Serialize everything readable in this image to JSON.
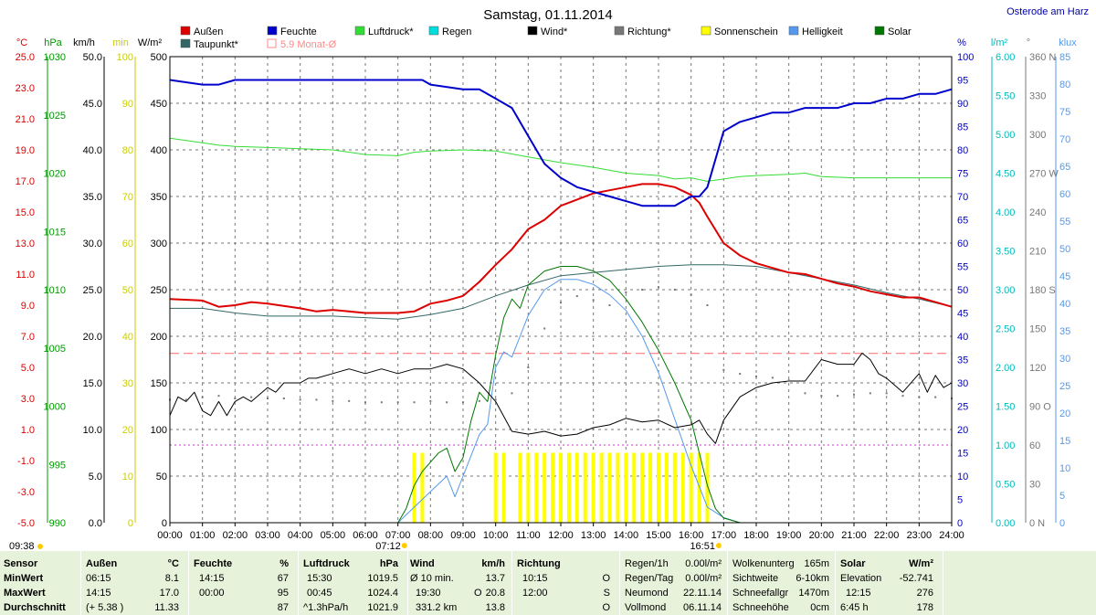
{
  "header": {
    "title": "Samstag, 01.11.2014",
    "station": "Osterode am Harz"
  },
  "legend": [
    {
      "label": "Außen",
      "color": "#dd0000"
    },
    {
      "label": "Feuchte",
      "color": "#0000cc"
    },
    {
      "label": "Luftdruck*",
      "color": "#33dd33"
    },
    {
      "label": "Regen",
      "color": "#00dddd"
    },
    {
      "label": "Wind*",
      "color": "#000000"
    },
    {
      "label": "Richtung*",
      "color": "#777777"
    },
    {
      "label": "Sonnenschein",
      "color": "#ffff00"
    },
    {
      "label": "Helligkeit",
      "color": "#5599ee"
    },
    {
      "label": "Solar",
      "color": "#007700"
    },
    {
      "label": "Taupunkt*",
      "color": "#336666"
    },
    {
      "label": "5.9 Monat-Ø",
      "color": "#ff8888"
    }
  ],
  "axes": {
    "temp": {
      "unit": "°C",
      "ticks": [
        "25.0",
        "23.0",
        "21.0",
        "19.0",
        "17.0",
        "15.0",
        "13.0",
        "11.0",
        "9.0",
        "7.0",
        "5.0",
        "3.0",
        "1.0",
        "-1.0",
        "-3.0",
        "-5.0"
      ],
      "color": "#dd0000"
    },
    "pressure": {
      "unit": "hPa",
      "ticks": [
        "1030",
        "1025",
        "1020",
        "1015",
        "1010",
        "1005",
        "1000",
        "995",
        "990"
      ],
      "color": "#009900"
    },
    "wind": {
      "unit": "km/h",
      "ticks": [
        "50.0",
        "45.0",
        "40.0",
        "35.0",
        "30.0",
        "25.0",
        "20.0",
        "15.0",
        "10.0",
        "5.0",
        "0.0"
      ],
      "color": "#000000"
    },
    "sunshine": {
      "unit": "min",
      "ticks": [
        "100",
        "90",
        "80",
        "70",
        "60",
        "50",
        "40",
        "30",
        "20",
        "10",
        "0"
      ],
      "color": "#cccc00"
    },
    "solar": {
      "unit": "W/m²",
      "ticks": [
        "500",
        "450",
        "400",
        "350",
        "300",
        "250",
        "200",
        "150",
        "100",
        "50",
        "0"
      ],
      "color": "#000000"
    },
    "humidity": {
      "unit": "%",
      "ticks": [
        "100",
        "95",
        "90",
        "85",
        "80",
        "75",
        "70",
        "65",
        "60",
        "55",
        "50",
        "45",
        "40",
        "35",
        "30",
        "25",
        "20",
        "15",
        "10",
        "5",
        "0"
      ],
      "color": "#0000cc"
    },
    "rain": {
      "unit": "l/m²",
      "ticks": [
        "6.00",
        "5.50",
        "5.00",
        "4.50",
        "4.00",
        "3.50",
        "3.00",
        "2.50",
        "2.00",
        "1.50",
        "1.00",
        "0.50",
        "0.00"
      ],
      "color": "#00bbbb"
    },
    "direction": {
      "unit": "°",
      "ticks": [
        "360 N",
        "330",
        "300",
        "270 W",
        "240",
        "210",
        "180 S",
        "150",
        "120",
        "90 O",
        "60",
        "30",
        "0 N"
      ],
      "color": "#777777"
    },
    "brightness": {
      "unit": "klux",
      "ticks": [
        "85",
        "80",
        "75",
        "70",
        "65",
        "60",
        "55",
        "50",
        "45",
        "40",
        "35",
        "30",
        "25",
        "20",
        "15",
        "10",
        "5",
        "0"
      ],
      "color": "#5599ee"
    },
    "time_ticks": [
      "00:00",
      "01:00",
      "02:00",
      "03:00",
      "04:00",
      "05:00",
      "06:00",
      "07:00",
      "08:00",
      "09:00",
      "10:00",
      "11:00",
      "12:00",
      "13:00",
      "14:00",
      "15:00",
      "16:00",
      "17:00",
      "18:00",
      "19:00",
      "20:00",
      "21:00",
      "22:00",
      "23:00",
      "24:00"
    ]
  },
  "markers": {
    "left_time": "09:38",
    "sunrise": "07:12",
    "sunset": "16:51"
  },
  "chart_data": {
    "type": "line",
    "x_unit": "hour of day",
    "xlim": [
      0,
      24
    ],
    "monthly_average_temp": 5.9,
    "rain_reference_line_l_m2": 1.0,
    "series": [
      {
        "name": "Außen",
        "axis": "temp",
        "color": "#dd0000",
        "x": [
          0,
          1,
          1.5,
          2,
          2.5,
          3,
          4,
          4.5,
          5,
          6,
          7,
          7.5,
          8,
          8.5,
          9,
          9.5,
          10,
          10.5,
          11,
          11.5,
          12,
          12.5,
          13,
          13.5,
          14,
          14.5,
          15,
          15.5,
          16,
          16.25,
          16.5,
          17,
          17.5,
          18,
          18.5,
          19,
          19.5,
          20,
          20.5,
          21,
          21.5,
          22,
          22.5,
          23,
          23.5,
          24
        ],
        "y": [
          9.4,
          9.3,
          8.9,
          9.0,
          9.2,
          9.1,
          8.8,
          8.6,
          8.7,
          8.5,
          8.5,
          8.6,
          9.1,
          9.3,
          9.6,
          10.5,
          11.6,
          12.6,
          13.9,
          14.5,
          15.4,
          15.8,
          16.2,
          16.4,
          16.6,
          16.8,
          16.8,
          16.6,
          16.1,
          15.6,
          14.7,
          13.0,
          12.2,
          11.7,
          11.4,
          11.1,
          11.0,
          10.7,
          10.4,
          10.2,
          9.9,
          9.7,
          9.5,
          9.5,
          9.2,
          8.9
        ]
      },
      {
        "name": "Feuchte",
        "axis": "humidity",
        "color": "#0000cc",
        "x": [
          0,
          1,
          1.5,
          2,
          3,
          4,
          5,
          6,
          7,
          7.75,
          8,
          9,
          9.5,
          10,
          10.5,
          11,
          11.5,
          12,
          12.5,
          13,
          13.5,
          14,
          14.5,
          15,
          15.5,
          16,
          16.25,
          16.5,
          16.75,
          17,
          17.5,
          18,
          18.5,
          19,
          19.5,
          20,
          20.5,
          21,
          21.5,
          22,
          22.5,
          23,
          23.5,
          24
        ],
        "y": [
          95,
          94,
          94,
          95,
          95,
          95,
          95,
          95,
          95,
          95,
          94,
          93,
          93,
          91,
          89,
          83,
          77,
          74,
          72,
          71,
          70,
          69,
          68,
          68,
          68,
          70,
          70,
          72,
          78,
          84,
          86,
          87,
          88,
          88,
          89,
          89,
          89,
          90,
          90,
          91,
          91,
          92,
          92,
          93
        ]
      },
      {
        "name": "Luftdruck*",
        "axis": "pressure",
        "color": "#33dd33",
        "x": [
          0,
          0.5,
          1,
          1.5,
          2,
          3,
          4,
          5,
          6,
          7,
          7.5,
          8,
          9,
          10,
          11,
          12,
          13,
          14,
          15,
          15.5,
          16,
          16.5,
          17,
          17.5,
          18,
          19,
          19.5,
          20,
          21,
          22,
          23,
          24
        ],
        "y": [
          1023.0,
          1022.8,
          1022.6,
          1022.4,
          1022.3,
          1022.2,
          1022.1,
          1022.0,
          1021.6,
          1021.5,
          1021.8,
          1021.9,
          1022.0,
          1021.9,
          1021.4,
          1020.9,
          1020.5,
          1020.0,
          1019.8,
          1019.5,
          1019.6,
          1019.3,
          1019.5,
          1019.7,
          1019.8,
          1019.9,
          1020.0,
          1019.7,
          1019.6,
          1019.6,
          1019.6,
          1019.6
        ]
      },
      {
        "name": "Taupunkt*",
        "axis": "temp",
        "color": "#336666",
        "x": [
          0,
          1,
          2,
          3,
          4,
          5,
          6,
          7,
          8,
          9,
          10,
          11,
          12,
          13,
          14,
          15,
          16,
          17,
          18,
          19,
          20,
          21,
          22,
          23,
          24
        ],
        "y": [
          8.8,
          8.8,
          8.5,
          8.3,
          8.3,
          8.3,
          8.2,
          8.1,
          8.4,
          8.8,
          9.6,
          10.3,
          10.9,
          11.1,
          11.3,
          11.5,
          11.6,
          11.6,
          11.5,
          11.1,
          10.7,
          10.3,
          9.8,
          9.4,
          8.9
        ]
      },
      {
        "name": "Solar",
        "axis": "solar",
        "color": "#007700",
        "x": [
          7,
          7.25,
          7.5,
          7.75,
          8,
          8.25,
          8.5,
          8.75,
          9,
          9.25,
          9.5,
          9.75,
          10,
          10.25,
          10.5,
          10.75,
          11,
          11.5,
          12,
          12.5,
          13,
          13.5,
          14,
          14.5,
          15,
          15.5,
          16,
          16.25,
          16.5,
          16.75,
          17,
          17.5
        ],
        "y": [
          0,
          15,
          40,
          55,
          65,
          75,
          80,
          55,
          70,
          110,
          140,
          130,
          180,
          220,
          240,
          230,
          255,
          270,
          275,
          275,
          270,
          260,
          240,
          215,
          185,
          150,
          110,
          75,
          40,
          15,
          5,
          0
        ]
      },
      {
        "name": "Helligkeit",
        "axis": "brightness",
        "color": "#5599ee",
        "x": [
          7,
          7.5,
          8,
          8.5,
          8.75,
          9,
          9.5,
          9.75,
          10,
          10.25,
          10.5,
          10.75,
          11,
          11.5,
          12,
          12.5,
          13,
          13.5,
          14,
          14.5,
          15,
          15.5,
          16,
          16.25,
          16.5,
          16.75,
          17,
          17.5
        ],
        "y": [
          0,
          3,
          6,
          9,
          5,
          9,
          17,
          19,
          30,
          33,
          32,
          36,
          40,
          45,
          47,
          47,
          46,
          44,
          41,
          36,
          29,
          20,
          11,
          7,
          3,
          2,
          1,
          0
        ]
      },
      {
        "name": "Wind*",
        "axis": "wind",
        "color": "#000000",
        "x": [
          0,
          0.25,
          0.5,
          0.75,
          1,
          1.25,
          1.5,
          1.75,
          2,
          2.25,
          2.5,
          3,
          3.25,
          3.5,
          4,
          4.25,
          4.5,
          5,
          5.5,
          6,
          6.5,
          7,
          7.5,
          8,
          8.5,
          9,
          9.5,
          10,
          10.5,
          11,
          11.5,
          12,
          12.5,
          13,
          13.5,
          14,
          14.5,
          15,
          15.5,
          16,
          16.25,
          16.5,
          16.75,
          17,
          17.5,
          18,
          18.5,
          19,
          19.5,
          20,
          20.5,
          21,
          21.25,
          21.5,
          21.75,
          22,
          22.5,
          23,
          23.25,
          23.5,
          23.75,
          24
        ],
        "y": [
          11.5,
          13.5,
          13.0,
          14.0,
          12.0,
          11.5,
          13.0,
          11.5,
          13.0,
          13.5,
          13.0,
          14.5,
          14.0,
          15.0,
          15.0,
          15.5,
          15.5,
          16.0,
          16.5,
          16.0,
          16.5,
          16.0,
          16.5,
          16.5,
          17.0,
          16.5,
          15.0,
          13.0,
          9.8,
          9.5,
          9.8,
          9.3,
          9.5,
          10.2,
          10.5,
          11.2,
          10.8,
          11.0,
          10.2,
          10.5,
          11.0,
          9.5,
          8.5,
          11.0,
          13.5,
          14.5,
          15.0,
          15.2,
          15.2,
          17.5,
          17.0,
          17.0,
          18.2,
          17.5,
          16.0,
          15.5,
          14.0,
          16.0,
          14.0,
          15.8,
          14.5,
          15.0
        ]
      },
      {
        "name": "Richtung*",
        "axis": "direction",
        "color": "#777777",
        "x": [
          0,
          0.5,
          1,
          1.5,
          2,
          2.5,
          3,
          3.5,
          4,
          4.5,
          5,
          5.5,
          6,
          6.5,
          7,
          7.5,
          8,
          8.5,
          9,
          9.5,
          10,
          10.5,
          11,
          11.5,
          12,
          12.5,
          13,
          13.5,
          14,
          14.5,
          15,
          15.5,
          16,
          16.5,
          17,
          17.5,
          18,
          18.5,
          19,
          19.5,
          20,
          20.5,
          21,
          21.5,
          22,
          22.5,
          23,
          23.5,
          24
        ],
        "y": [
          95,
          95,
          97,
          98,
          96,
          97,
          96,
          96,
          95,
          95,
          94,
          94,
          93,
          93,
          93,
          93,
          94,
          93,
          93,
          94,
          95,
          100,
          120,
          150,
          170,
          175,
          172,
          168,
          178,
          180,
          182,
          180,
          176,
          168,
          118,
          115,
          113,
          112,
          110,
          100,
          98,
          98,
          99,
          100,
          100,
          98,
          97,
          97,
          96
        ]
      },
      {
        "name": "Sonnenschein",
        "axis": "sunshine",
        "color": "#ffff00",
        "x": [
          7.5,
          7.75,
          10.0,
          10.25,
          10.75,
          11.0,
          11.25,
          11.5,
          11.75,
          12.0,
          12.25,
          12.5,
          12.75,
          13.0,
          13.25,
          13.5,
          13.75,
          14.0,
          14.25,
          14.5,
          14.75,
          15.0,
          15.25,
          15.5,
          15.75,
          16.0,
          16.25,
          16.5
        ],
        "y": [
          15,
          15,
          15,
          15,
          15,
          15,
          15,
          15,
          15,
          15,
          15,
          15,
          15,
          15,
          15,
          15,
          15,
          15,
          15,
          15,
          15,
          15,
          15,
          15,
          15,
          15,
          15,
          15
        ]
      }
    ]
  },
  "footer": {
    "col1": {
      "title": "Sensor",
      "r1": "MinWert",
      "r2": "MaxWert",
      "r3": "Durchschnitt"
    },
    "col2": {
      "title": "Außen",
      "unit": "°C",
      "r1a": "06:15",
      "r1b": "8.1",
      "r2a": "14:15",
      "r2b": "17.0",
      "r3a": "(+ 5.38 )",
      "r3b": "11.33"
    },
    "col3": {
      "title": "Feuchte",
      "unit": "%",
      "r1a": "14:15",
      "r1b": "67",
      "r2a": "00:00",
      "r2b": "95",
      "r3a": "",
      "r3b": "87"
    },
    "col4": {
      "title": "Luftdruck",
      "unit": "hPa",
      "r1a": "15:30",
      "r1b": "1019.5",
      "r2a": "00:45",
      "r2b": "1024.4",
      "r3a": "^1.3hPa/h",
      "r3b": "1021.9"
    },
    "col5": {
      "title": "Wind",
      "unit": "km/h",
      "r1a": "Ø 10 min.",
      "r1b": "13.7",
      "r2a": "19:30",
      "r2m": "O",
      "r2b": "20.8",
      "r3a": "331.2 km",
      "r3b": "13.8"
    },
    "col6": {
      "title": "Richtung",
      "r1a": "10:15",
      "r1b": "O",
      "r2a": "12:00",
      "r2b": "S",
      "r3b": "O"
    },
    "col7": {
      "r0a": "Regen/1h",
      "r0b": "0.00l/m²",
      "r1a": "Regen/Tag",
      "r1b": "0.00l/m²",
      "r2a": "Neumond",
      "r2b": "22.11.14",
      "r3a": "Vollmond",
      "r3b": "06.11.14"
    },
    "col8": {
      "r0a": "Wolkenunterg",
      "r0b": "165m",
      "r1a": "Sichtweite",
      "r1b": "6-10km",
      "r2a": "Schneefallgr",
      "r2b": "1470m",
      "r3a": "Schneehöhe",
      "r3b": "0cm"
    },
    "col9": {
      "title": "Solar",
      "unit": "W/m²",
      "r1a": "Elevation",
      "r1b": "-52.741",
      "r2a": "12:15",
      "r2b": "276",
      "r3a": "6:45 h",
      "r3b": "178"
    }
  }
}
